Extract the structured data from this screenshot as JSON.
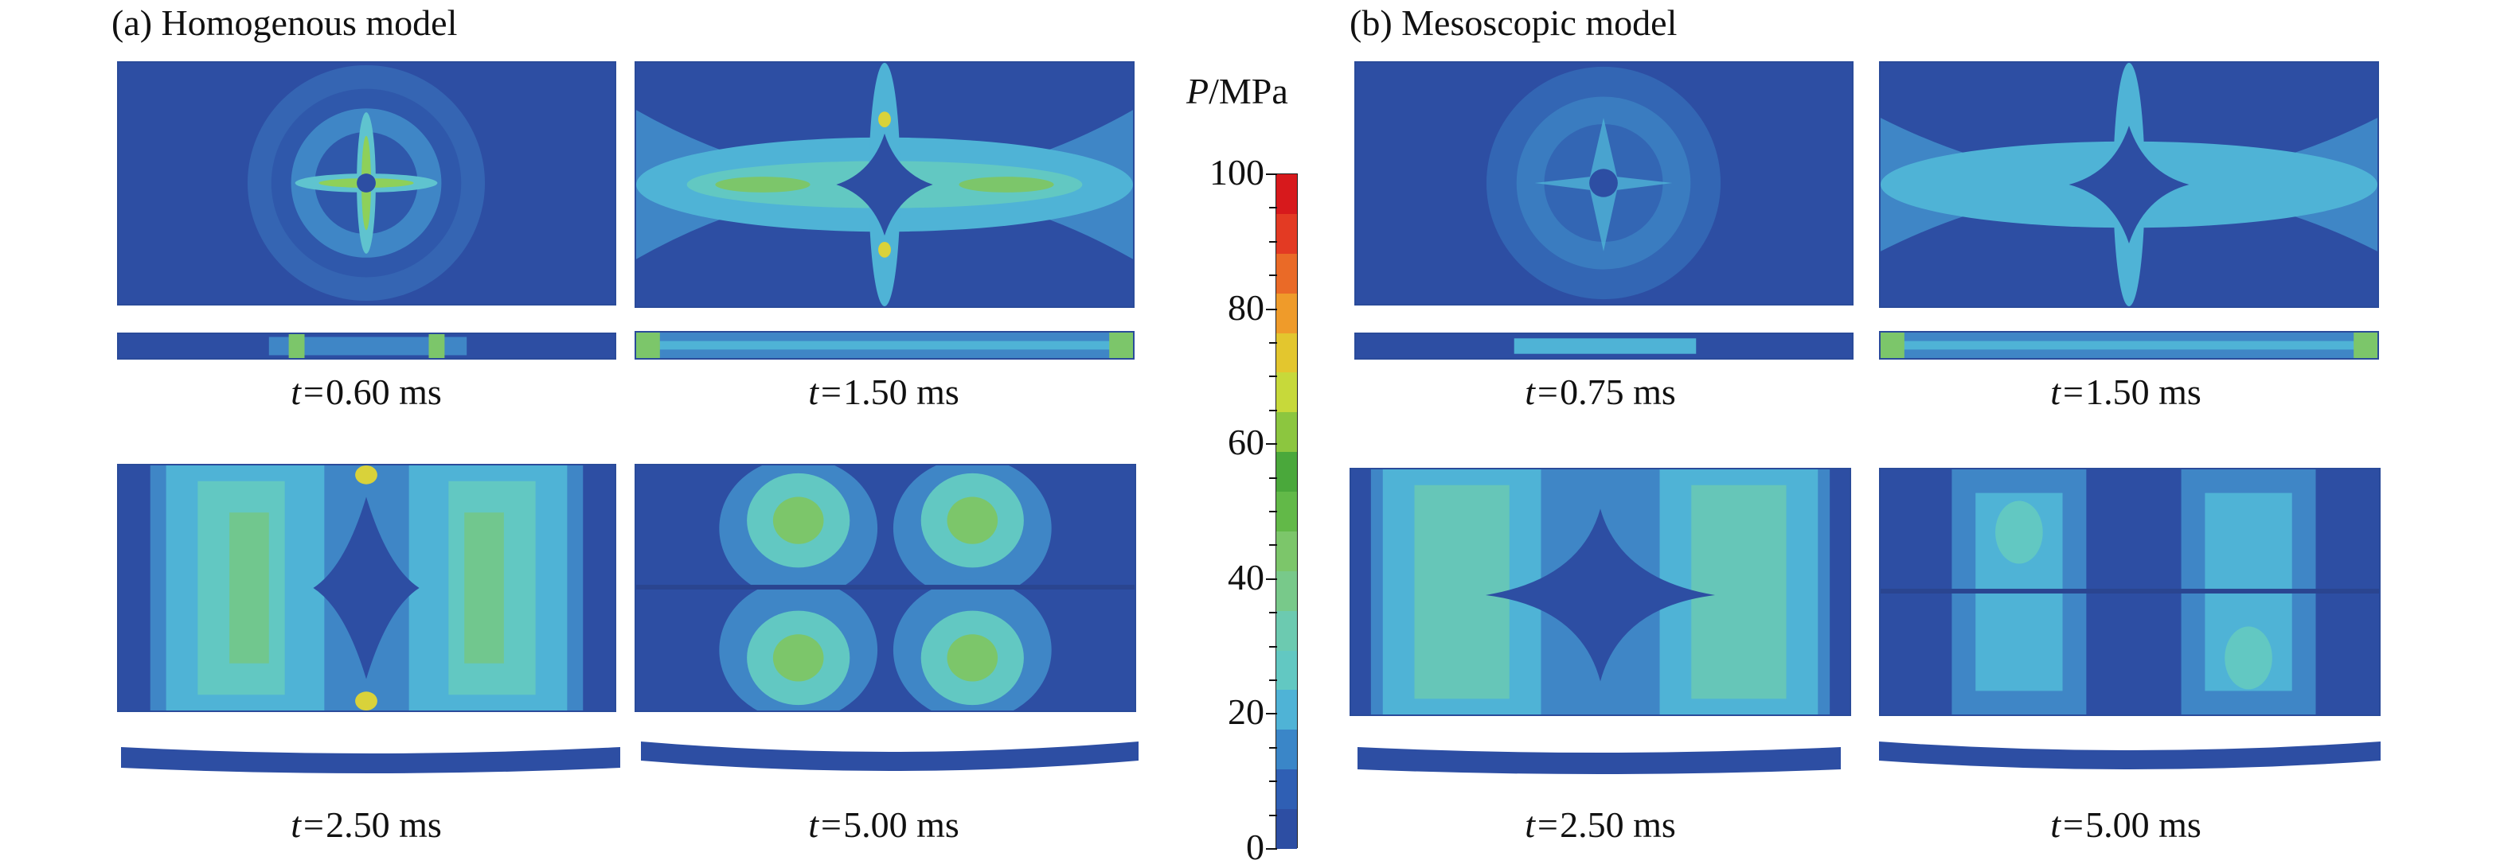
{
  "panels": {
    "a_title": "(a) Homogenous model",
    "b_title": "(b) Mesoscopic model"
  },
  "captions": {
    "a1": "0.60 ms",
    "a2": "1.50 ms",
    "a3": "2.50 ms",
    "a4": "5.00 ms",
    "b1": "0.75 ms",
    "b2": "1.50 ms",
    "b3": "2.50 ms",
    "b4": "5.00 ms",
    "t_symbol": "t="
  },
  "colorbar": {
    "title_symbol": "P",
    "title_unit": "/MPa",
    "labels": [
      "100",
      "80",
      "60",
      "40",
      "20",
      "0"
    ],
    "range": [
      0,
      100
    ],
    "colors": [
      "#2d4ea3",
      "#2f5fb4",
      "#3a86c8",
      "#4fb3d6",
      "#62c8c2",
      "#6ccab0",
      "#78c98a",
      "#7cc66a",
      "#62b948",
      "#4aa83b",
      "#8cc63f",
      "#c7d93a",
      "#e3c62e",
      "#ef9b2a",
      "#ea6a27",
      "#e33a23",
      "#d7191c"
    ]
  },
  "colors": {
    "base": "#2d4ea3",
    "mid": "#4fb3d6",
    "high": "#78c96f",
    "peak": "#d9d23a"
  }
}
